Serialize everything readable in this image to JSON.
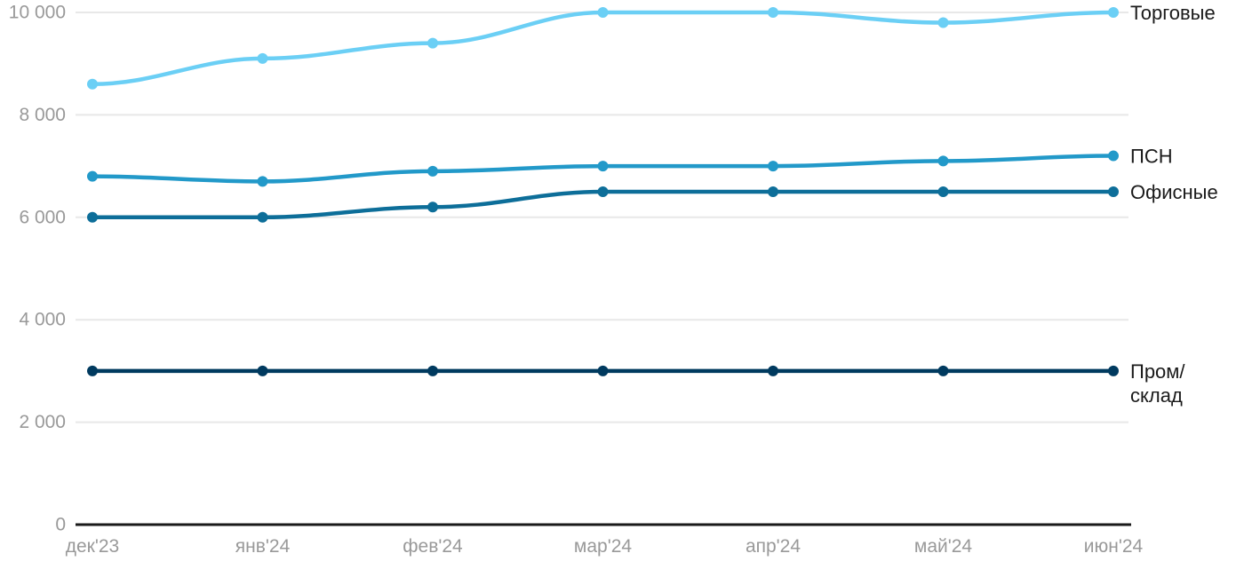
{
  "chart_data": {
    "type": "line",
    "title": "",
    "xlabel": "",
    "ylabel": "",
    "x_labels": [
      "дек'23",
      "янв'24",
      "фев'24",
      "мар'24",
      "апр'24",
      "май'24",
      "июн'24"
    ],
    "y_ticks": [
      {
        "value": 0,
        "label": "0"
      },
      {
        "value": 2000,
        "label": "2 000"
      },
      {
        "value": 4000,
        "label": "4 000"
      },
      {
        "value": 6000,
        "label": "6 000"
      },
      {
        "value": 8000,
        "label": "8 000"
      },
      {
        "value": 10000,
        "label": "10 000"
      }
    ],
    "ylim": [
      0,
      10000
    ],
    "grid": true,
    "legend_position": "right-end-of-line",
    "series": [
      {
        "name": "Торговые",
        "label_lines": [
          "Торговые"
        ],
        "color": "#6BCFF5",
        "values": [
          8600,
          9100,
          9400,
          10000,
          10000,
          9800,
          10000
        ]
      },
      {
        "name": "ПСН",
        "label_lines": [
          "ПСН"
        ],
        "color": "#2299C9",
        "values": [
          6800,
          6700,
          6900,
          7000,
          7000,
          7100,
          7200
        ]
      },
      {
        "name": "Офисные",
        "label_lines": [
          "Офисные"
        ],
        "color": "#0D6E99",
        "values": [
          6000,
          6000,
          6200,
          6500,
          6500,
          6500,
          6500
        ]
      },
      {
        "name": "Пром/склад",
        "label_lines": [
          "Пром/",
          "склад"
        ],
        "color": "#003A5F",
        "values": [
          3000,
          3000,
          3000,
          3000,
          3000,
          3000,
          3000
        ]
      }
    ],
    "colors": {
      "grid": "#E8E8E8",
      "axis": "#1A1A1A",
      "tick_text": "#999999",
      "series_label_text": "#1A1A1A",
      "background": "#FFFFFF"
    }
  }
}
